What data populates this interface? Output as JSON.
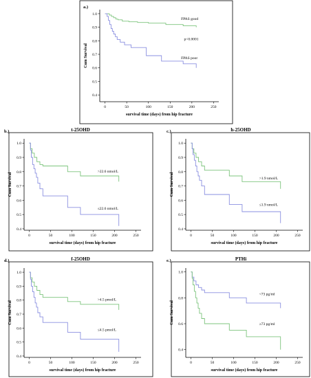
{
  "chart_data": [
    {
      "id": "a",
      "type": "line",
      "panel_label": "a.)",
      "title": "",
      "xlabel": "survival time (days) from hip fracture",
      "ylabel": "Cum Survival",
      "xlim": [
        -12,
        262
      ],
      "ylim": [
        0.35,
        1.03
      ],
      "xticks": [
        0,
        50,
        100,
        150,
        200,
        250
      ],
      "yticks": [
        0.4,
        0.5,
        0.6,
        0.7,
        0.8,
        0.9,
        1.0
      ],
      "ytick_labels": [
        "0.4",
        "0.5",
        "0.6",
        "0.7",
        "0.8",
        "0.9",
        "1.0"
      ],
      "series": [
        {
          "name": "FPAS good",
          "color": "#7cc47c",
          "x": [
            0,
            5,
            10,
            15,
            20,
            25,
            30,
            40,
            55,
            75,
            100,
            140,
            180,
            210,
            210
          ],
          "y": [
            1.0,
            1.0,
            0.99,
            0.98,
            0.97,
            0.96,
            0.955,
            0.945,
            0.94,
            0.935,
            0.93,
            0.92,
            0.91,
            0.905,
            0.9
          ]
        },
        {
          "name": "FPAS poor",
          "color": "#8a8fe0",
          "x": [
            0,
            5,
            8,
            11,
            14,
            17,
            20,
            24,
            28,
            35,
            45,
            60,
            95,
            130,
            180,
            210,
            210
          ],
          "y": [
            1.0,
            0.98,
            0.95,
            0.92,
            0.89,
            0.87,
            0.85,
            0.83,
            0.81,
            0.79,
            0.77,
            0.75,
            0.69,
            0.65,
            0.63,
            0.63,
            0.6
          ]
        }
      ],
      "annotations": [
        {
          "text": "FPAS good",
          "x": 175,
          "y": 0.955
        },
        {
          "text": "p<0.0001",
          "x": 182,
          "y": 0.805
        },
        {
          "text": "FPAS poor",
          "x": 175,
          "y": 0.665
        }
      ]
    },
    {
      "id": "b",
      "type": "line",
      "panel_label": "b.)",
      "title": "t-25OHD",
      "xlabel": "survival time (days) from hip fracture",
      "ylabel": "Cum Survival",
      "xlim": [
        -12,
        262
      ],
      "ylim": [
        0.39,
        1.03
      ],
      "xticks": [
        0,
        50,
        100,
        150,
        200,
        250
      ],
      "yticks": [
        0.4,
        0.5,
        0.6,
        0.7,
        0.8,
        0.9,
        1.0
      ],
      "ytick_labels": [
        "0.4",
        "0.5",
        "0.6",
        "0.7",
        "0.8",
        "0.9",
        "1.0"
      ],
      "series": [
        {
          "name": ">22.6 nmol/L",
          "color": "#7cc47c",
          "x": [
            0,
            3,
            7,
            12,
            18,
            25,
            32,
            90,
            120,
            210,
            210
          ],
          "y": [
            1.0,
            0.96,
            0.93,
            0.9,
            0.87,
            0.85,
            0.84,
            0.8,
            0.77,
            0.77,
            0.73
          ]
        },
        {
          "name": "≤22.6 nmol/L",
          "color": "#8a8fe0",
          "x": [
            0,
            3,
            5,
            8,
            11,
            14,
            17,
            20,
            25,
            32,
            90,
            120,
            210,
            210
          ],
          "y": [
            1.0,
            0.95,
            0.9,
            0.85,
            0.82,
            0.79,
            0.76,
            0.72,
            0.68,
            0.63,
            0.55,
            0.5,
            0.5,
            0.42
          ]
        }
      ],
      "annotations": [
        {
          "text": ">22.6 nmol/L",
          "x": 160,
          "y": 0.795
        },
        {
          "text": "≤22.6 nmol/L",
          "x": 160,
          "y": 0.535
        }
      ]
    },
    {
      "id": "c",
      "type": "line",
      "panel_label": "c.)",
      "title": "h-25OHD",
      "xlabel": "survival time (days) from hip fracture",
      "ylabel": "Cum Survival",
      "xlim": [
        -12,
        262
      ],
      "ylim": [
        0.39,
        1.03
      ],
      "xticks": [
        0,
        50,
        100,
        150,
        200,
        250
      ],
      "yticks": [
        0.4,
        0.5,
        0.6,
        0.7,
        0.8,
        0.9,
        1.0
      ],
      "ytick_labels": [
        "0.4",
        "0.5",
        "0.6",
        "0.7",
        "0.8",
        "0.9",
        "1.0"
      ],
      "series": [
        {
          "name": ">1.9 nmol/L",
          "color": "#7cc47c",
          "x": [
            0,
            3,
            7,
            12,
            18,
            25,
            32,
            90,
            120,
            210,
            210
          ],
          "y": [
            1.0,
            0.96,
            0.93,
            0.9,
            0.87,
            0.84,
            0.81,
            0.77,
            0.73,
            0.73,
            0.68
          ]
        },
        {
          "name": "≤1.9 nmol/L",
          "color": "#8a8fe0",
          "x": [
            0,
            3,
            5,
            8,
            11,
            14,
            17,
            20,
            25,
            32,
            90,
            120,
            210,
            210
          ],
          "y": [
            1.0,
            0.96,
            0.92,
            0.88,
            0.84,
            0.8,
            0.77,
            0.74,
            0.7,
            0.64,
            0.57,
            0.52,
            0.52,
            0.44
          ]
        }
      ],
      "annotations": [
        {
          "text": ">1.9 nmol/L",
          "x": 160,
          "y": 0.745
        },
        {
          "text": "≤1.9 nmol/L",
          "x": 160,
          "y": 0.56
        }
      ]
    },
    {
      "id": "d",
      "type": "line",
      "panel_label": "d.)",
      "title": "f-25OHD",
      "xlabel": "survival time (days) from hip fracture",
      "ylabel": "Cum Survival",
      "xlim": [
        -12,
        262
      ],
      "ylim": [
        0.39,
        1.03
      ],
      "xticks": [
        0,
        50,
        100,
        150,
        200,
        250
      ],
      "yticks": [
        0.4,
        0.5,
        0.6,
        0.7,
        0.8,
        0.9,
        1.0
      ],
      "ytick_labels": [
        "0.4",
        "0.5",
        "0.6",
        "0.7",
        "0.8",
        "0.9",
        "1.0"
      ],
      "series": [
        {
          "name": ">4.5 pmol/L",
          "color": "#7cc47c",
          "x": [
            0,
            3,
            7,
            12,
            18,
            25,
            32,
            90,
            120,
            210,
            210
          ],
          "y": [
            1.0,
            0.96,
            0.93,
            0.9,
            0.87,
            0.84,
            0.82,
            0.79,
            0.77,
            0.77,
            0.73
          ]
        },
        {
          "name": "≤4.5 pmol/L",
          "color": "#8a8fe0",
          "x": [
            0,
            3,
            5,
            8,
            11,
            14,
            17,
            20,
            25,
            32,
            90,
            120,
            210,
            210
          ],
          "y": [
            1.0,
            0.95,
            0.9,
            0.86,
            0.82,
            0.78,
            0.75,
            0.71,
            0.68,
            0.64,
            0.57,
            0.52,
            0.52,
            0.43
          ]
        }
      ],
      "annotations": [
        {
          "text": ">4.5 pmol/L",
          "x": 160,
          "y": 0.795
        },
        {
          "text": "≤4.5 pmol/L",
          "x": 160,
          "y": 0.58
        }
      ]
    },
    {
      "id": "e",
      "type": "line",
      "panel_label": "e.)",
      "title": "PTHi",
      "xlabel": "survival time (days) from hip fracture",
      "ylabel": "Cum Survival",
      "xlim": [
        -12,
        262
      ],
      "ylim": [
        0.34,
        1.03
      ],
      "xticks": [
        0,
        50,
        100,
        150,
        200,
        250
      ],
      "yticks": [
        0.4,
        0.6,
        0.8,
        1.0
      ],
      "ytick_labels": [
        "0.4",
        "0.6",
        "0.8",
        "1.0"
      ],
      "series": [
        {
          "name": "<73 pg/ml",
          "color": "#8a8fe0",
          "x": [
            0,
            3,
            7,
            12,
            18,
            25,
            32,
            90,
            130,
            210,
            210
          ],
          "y": [
            1.0,
            0.96,
            0.93,
            0.9,
            0.88,
            0.86,
            0.84,
            0.8,
            0.76,
            0.76,
            0.72
          ]
        },
        {
          "name": "≥73 pg/ml",
          "color": "#7cc47c",
          "x": [
            0,
            3,
            5,
            8,
            11,
            14,
            17,
            20,
            25,
            32,
            90,
            130,
            210,
            210
          ],
          "y": [
            1.0,
            0.95,
            0.9,
            0.85,
            0.8,
            0.76,
            0.72,
            0.68,
            0.64,
            0.6,
            0.55,
            0.5,
            0.5,
            0.4
          ]
        }
      ],
      "annotations": [
        {
          "text": "<73 pg/ml",
          "x": 160,
          "y": 0.82
        },
        {
          "text": "≥73 pg/ml",
          "x": 160,
          "y": 0.59
        }
      ]
    }
  ]
}
